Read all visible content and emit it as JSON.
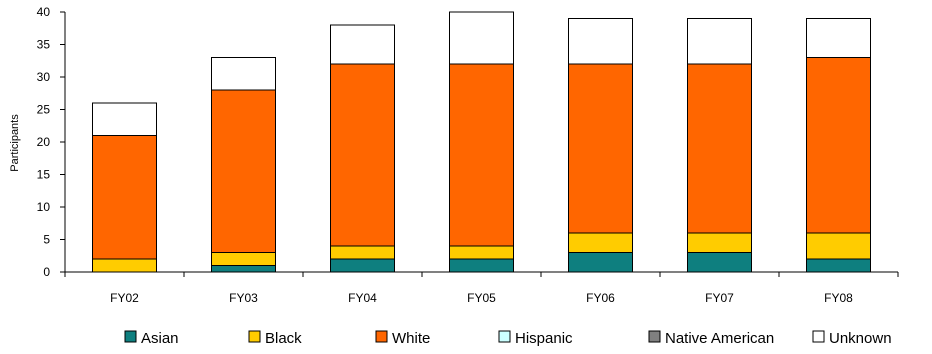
{
  "chart_data": {
    "type": "bar",
    "stacked": true,
    "title": "",
    "xlabel": "",
    "ylabel": "Participants",
    "ylim": [
      0,
      40
    ],
    "yticks": [
      0,
      5,
      10,
      15,
      20,
      25,
      30,
      35,
      40
    ],
    "categories": [
      "FY02",
      "FY03",
      "FY04",
      "FY05",
      "FY06",
      "FY07",
      "FY08"
    ],
    "series": [
      {
        "name": "Asian",
        "color": "#0e7f7f",
        "values": [
          0,
          1,
          2,
          2,
          3,
          3,
          2
        ]
      },
      {
        "name": "Black",
        "color": "#ffcc00",
        "values": [
          2,
          2,
          2,
          2,
          3,
          3,
          4
        ]
      },
      {
        "name": "White",
        "color": "#ff6600",
        "values": [
          19,
          25,
          28,
          28,
          26,
          26,
          27
        ]
      },
      {
        "name": "Hispanic",
        "color": "#ccffff",
        "values": [
          0,
          0,
          0,
          0,
          0,
          0,
          0
        ]
      },
      {
        "name": "Native American",
        "color": "#808080",
        "values": [
          0,
          0,
          0,
          0,
          0,
          0,
          0
        ]
      },
      {
        "name": "Unknown",
        "color": "#ffffff",
        "values": [
          5,
          5,
          6,
          8,
          7,
          7,
          6
        ]
      }
    ],
    "grid": false,
    "legend_position": "bottom"
  }
}
